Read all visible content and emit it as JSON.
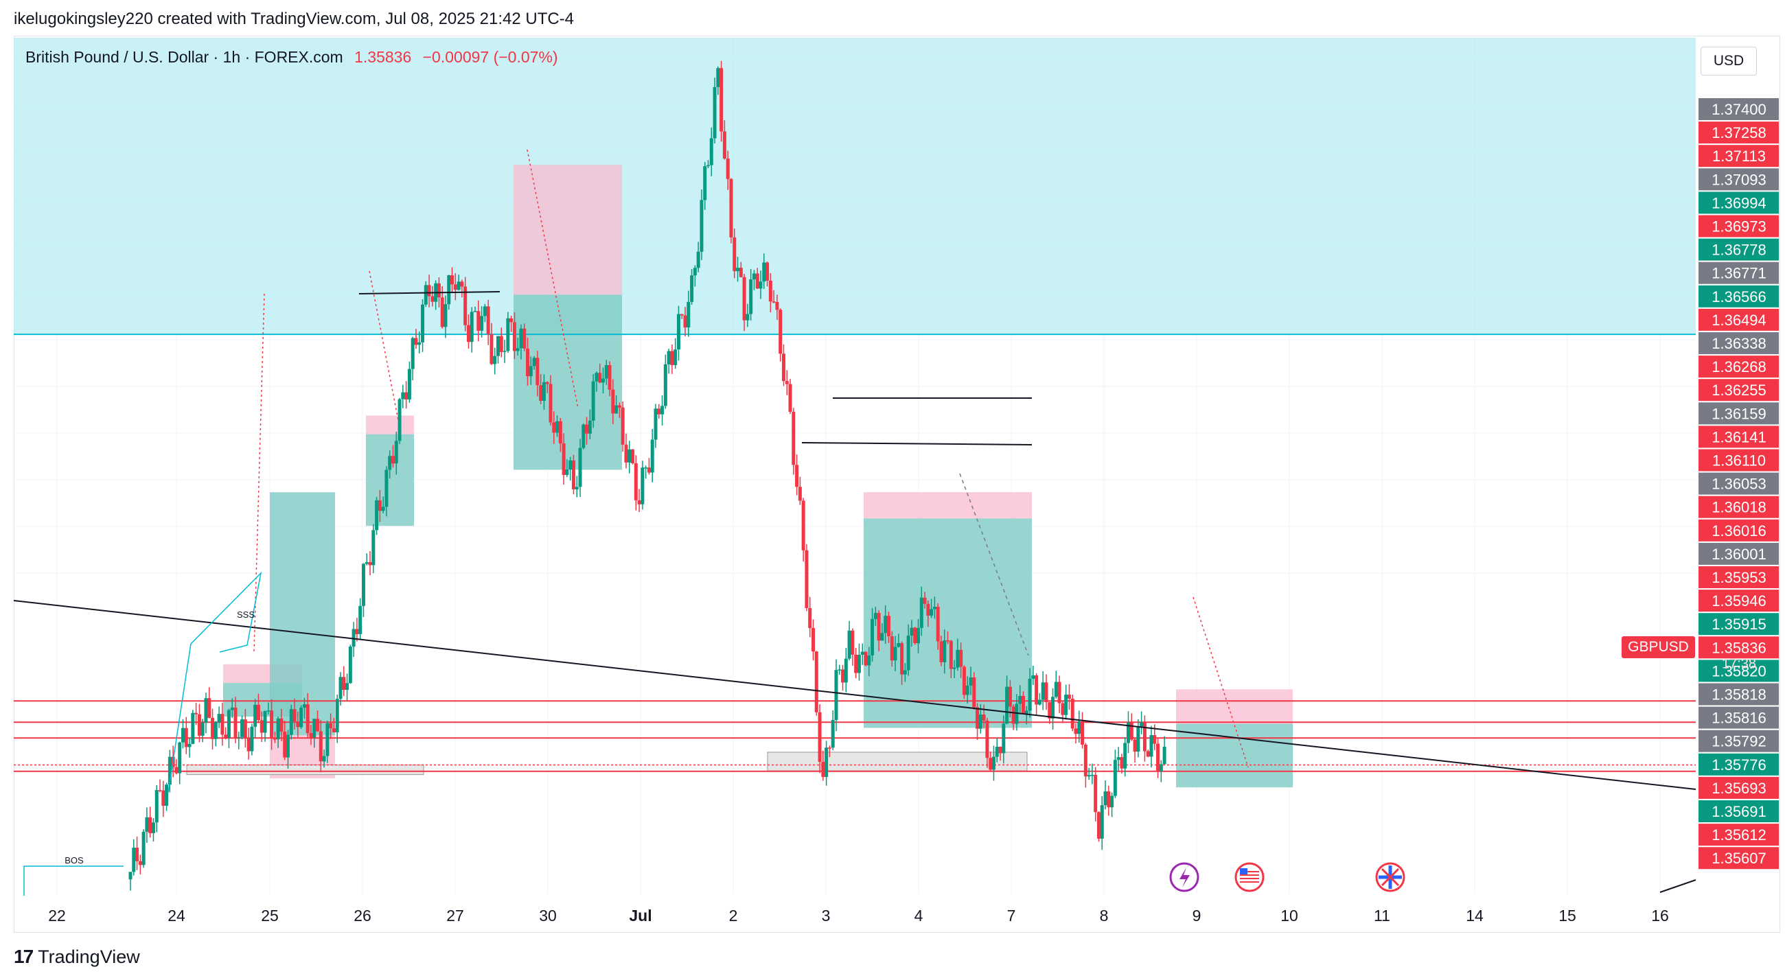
{
  "header": {
    "credit": "ikelugokingsley220 created with TradingView.com, Jul 08, 2025 21:42 UTC-4",
    "symbol": "British Pound / U.S. Dollar · 1h · FOREX.com",
    "last_price": "1.35836",
    "change": "−0.00097 (−0.07%)",
    "currency": "USD"
  },
  "footer": {
    "brand": "TradingView",
    "logo_text": "17"
  },
  "colors": {
    "up": "#089981",
    "down": "#f23645",
    "zone": "#b2ebf2",
    "target_zone": "#80cbc4",
    "stop_zone": "#f8bbd0",
    "grey_label": "#787b86",
    "line": "#131722"
  },
  "chart_data": {
    "type": "candlestick",
    "symbol": "GBPUSD",
    "timeframe": "1h",
    "ylim": [
      1.3549,
      1.3778
    ],
    "x_ticks": [
      "22",
      "24",
      "25",
      "26",
      "27",
      "30",
      "Jul",
      "2",
      "3",
      "4",
      "7",
      "8",
      "9",
      "10",
      "11",
      "14",
      "15",
      "16"
    ],
    "countdown": "17:38",
    "symbol_tag": "GBPUSD",
    "price_labels": [
      {
        "value": "1.37400",
        "kind": "grey"
      },
      {
        "value": "1.37258",
        "kind": "red"
      },
      {
        "value": "1.37113",
        "kind": "red"
      },
      {
        "value": "1.37093",
        "kind": "grey"
      },
      {
        "value": "1.36994",
        "kind": "green"
      },
      {
        "value": "1.36973",
        "kind": "red"
      },
      {
        "value": "1.36778",
        "kind": "green"
      },
      {
        "value": "1.36771",
        "kind": "grey"
      },
      {
        "value": "1.36566",
        "kind": "green"
      },
      {
        "value": "1.36494",
        "kind": "red"
      },
      {
        "value": "1.36338",
        "kind": "grey"
      },
      {
        "value": "1.36268",
        "kind": "red"
      },
      {
        "value": "1.36255",
        "kind": "red"
      },
      {
        "value": "1.36159",
        "kind": "grey"
      },
      {
        "value": "1.36141",
        "kind": "red"
      },
      {
        "value": "1.36110",
        "kind": "red"
      },
      {
        "value": "1.36053",
        "kind": "grey"
      },
      {
        "value": "1.36018",
        "kind": "red"
      },
      {
        "value": "1.36016",
        "kind": "red"
      },
      {
        "value": "1.36001",
        "kind": "grey"
      },
      {
        "value": "1.35953",
        "kind": "red"
      },
      {
        "value": "1.35946",
        "kind": "red"
      },
      {
        "value": "1.35915",
        "kind": "green"
      },
      {
        "value": "1.35836",
        "kind": "red"
      },
      {
        "value": "1.35820",
        "kind": "green"
      },
      {
        "value": "1.35818",
        "kind": "grey"
      },
      {
        "value": "1.35816",
        "kind": "grey"
      },
      {
        "value": "1.35792",
        "kind": "grey"
      },
      {
        "value": "1.35776",
        "kind": "green"
      },
      {
        "value": "1.35693",
        "kind": "red"
      },
      {
        "value": "1.35691",
        "kind": "green"
      },
      {
        "value": "1.35612",
        "kind": "red"
      },
      {
        "value": "1.35607",
        "kind": "red"
      }
    ],
    "horizontal_lines": [
      {
        "price": 1.36987,
        "color": "#00bcd4"
      },
      {
        "price": 1.36007,
        "color": "#f23645"
      },
      {
        "price": 1.3595,
        "color": "#f23645"
      },
      {
        "price": 1.35908,
        "color": "#f23645"
      },
      {
        "price": 1.35836,
        "color": "#f23645",
        "dotted": true
      },
      {
        "price": 1.35819,
        "color": "#f23645"
      }
    ],
    "annotations": [
      "BOS",
      "SSS"
    ],
    "candles_close_path": [
      1.3553,
      1.3561,
      1.3571,
      1.3579,
      1.3588,
      1.3594,
      1.3597,
      1.3593,
      1.3596,
      1.359,
      1.3597,
      1.3594,
      1.359,
      1.3598,
      1.3594,
      1.3587,
      1.36,
      1.3612,
      1.3633,
      1.365,
      1.3663,
      1.3682,
      1.3697,
      1.3712,
      1.3705,
      1.3715,
      1.37,
      1.3705,
      1.3692,
      1.37,
      1.3696,
      1.3688,
      1.3682,
      1.3668,
      1.3658,
      1.3675,
      1.369,
      1.3682,
      1.3668,
      1.3655,
      1.367,
      1.3688,
      1.37,
      1.371,
      1.374,
      1.3768,
      1.3725,
      1.3705,
      1.3715,
      1.3712,
      1.369,
      1.366,
      1.362,
      1.3578,
      1.3605,
      1.3615,
      1.361,
      1.3622,
      1.3618,
      1.361,
      1.362,
      1.3628,
      1.3615,
      1.3612,
      1.3605,
      1.3595,
      1.3582,
      1.36,
      1.3598,
      1.3605,
      1.36,
      1.3602,
      1.3597,
      1.3585,
      1.3568,
      1.3578,
      1.359,
      1.3592,
      1.3588,
      1.3584
    ]
  }
}
